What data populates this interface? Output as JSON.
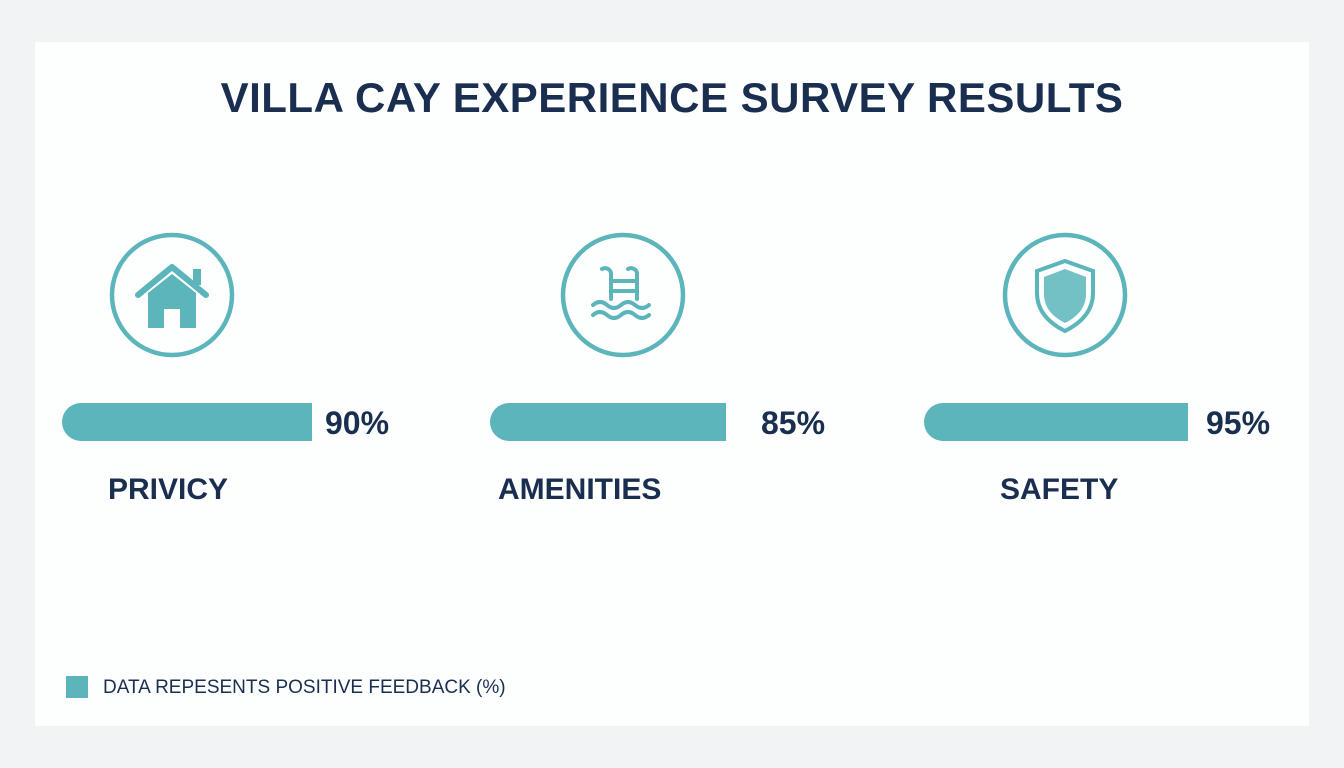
{
  "chart_data": {
    "type": "bar",
    "title": "VILLA CAY EXPERIENCE SURVEY RESULTS",
    "categories": [
      "PRIVICY",
      "AMENITIES",
      "SAFETY"
    ],
    "values": [
      90,
      85,
      95
    ],
    "value_labels": [
      "90%",
      "85%",
      "95%"
    ],
    "icons": [
      "house-icon",
      "pool-ladder-icon",
      "shield-icon"
    ],
    "legend": "DATA REPESENTS POSITIVE FEEDBACK (%)",
    "legend_placement": "bottom-left",
    "color": "#5bb5bb",
    "text_color": "#1a2e50",
    "ylim": [
      0,
      100
    ]
  }
}
